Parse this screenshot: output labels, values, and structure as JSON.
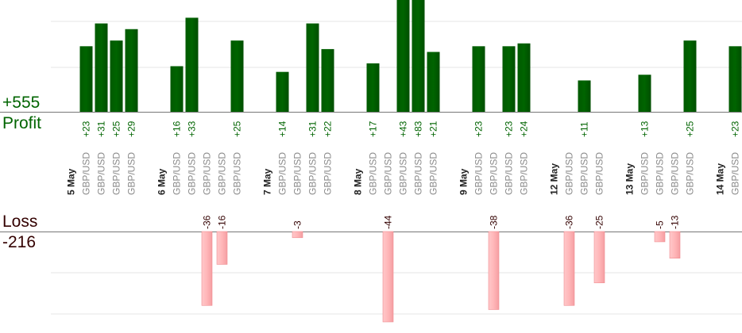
{
  "summary": {
    "profit_total": "+555",
    "profit_label": "Profit",
    "loss_label": "Loss",
    "loss_total": "-216"
  },
  "colors": {
    "profit_bar": "#006400",
    "profit_text": "#006400",
    "loss_bar": "#ffb6b8",
    "loss_text": "#330000",
    "date_text": "#222222",
    "pair_text": "#8a8a8a",
    "gridline": "#e6e6e6",
    "baseline": "#777777"
  },
  "chart_data": {
    "type": "bar",
    "title": "",
    "xlabel": "",
    "ylabel": "",
    "profit_ylim": [
      0,
      37
    ],
    "loss_ylim": [
      -44,
      0
    ],
    "grid": true,
    "legend": "none",
    "categories": [
      {
        "label": "5 May",
        "kind": "date"
      },
      {
        "label": "GBP/USD",
        "kind": "trade",
        "profit": 23,
        "loss": null
      },
      {
        "label": "GBP/USD",
        "kind": "trade",
        "profit": 31,
        "loss": null
      },
      {
        "label": "GBP/USD",
        "kind": "trade",
        "profit": 25,
        "loss": null
      },
      {
        "label": "GBP/USD",
        "kind": "trade",
        "profit": 29,
        "loss": null
      },
      {
        "label": "",
        "kind": "gap"
      },
      {
        "label": "6 May",
        "kind": "date"
      },
      {
        "label": "GBP/USD",
        "kind": "trade",
        "profit": 16,
        "loss": null
      },
      {
        "label": "GBP/USD",
        "kind": "trade",
        "profit": 33,
        "loss": null
      },
      {
        "label": "GBP/USD",
        "kind": "trade",
        "profit": null,
        "loss": -36
      },
      {
        "label": "GBP/USD",
        "kind": "trade",
        "profit": null,
        "loss": -16
      },
      {
        "label": "GBP/USD",
        "kind": "trade",
        "profit": 25,
        "loss": null
      },
      {
        "label": "",
        "kind": "gap"
      },
      {
        "label": "7 May",
        "kind": "date"
      },
      {
        "label": "GBP/USD",
        "kind": "trade",
        "profit": 14,
        "loss": null
      },
      {
        "label": "GBP/USD",
        "kind": "trade",
        "profit": null,
        "loss": -3
      },
      {
        "label": "GBP/USD",
        "kind": "trade",
        "profit": 31,
        "loss": null
      },
      {
        "label": "GBP/USD",
        "kind": "trade",
        "profit": 22,
        "loss": null
      },
      {
        "label": "",
        "kind": "gap"
      },
      {
        "label": "8 May",
        "kind": "date"
      },
      {
        "label": "GBP/USD",
        "kind": "trade",
        "profit": 17,
        "loss": null
      },
      {
        "label": "GBP/USD",
        "kind": "trade",
        "profit": null,
        "loss": -44
      },
      {
        "label": "GBP/USD",
        "kind": "trade",
        "profit": 43,
        "loss": null
      },
      {
        "label": "GBP/USD",
        "kind": "trade",
        "profit": 83,
        "loss": null
      },
      {
        "label": "GBP/USD",
        "kind": "trade",
        "profit": 21,
        "loss": null
      },
      {
        "label": "",
        "kind": "gap"
      },
      {
        "label": "9 May",
        "kind": "date"
      },
      {
        "label": "GBP/USD",
        "kind": "trade",
        "profit": 23,
        "loss": null
      },
      {
        "label": "GBP/USD",
        "kind": "trade",
        "profit": null,
        "loss": -38
      },
      {
        "label": "GBP/USD",
        "kind": "trade",
        "profit": 23,
        "loss": null
      },
      {
        "label": "GBP/USD",
        "kind": "trade",
        "profit": 24,
        "loss": null
      },
      {
        "label": "",
        "kind": "gap"
      },
      {
        "label": "12 May",
        "kind": "date"
      },
      {
        "label": "GBP/USD",
        "kind": "trade",
        "profit": null,
        "loss": -36
      },
      {
        "label": "GBP/USD",
        "kind": "trade",
        "profit": 11,
        "loss": null
      },
      {
        "label": "GBP/USD",
        "kind": "trade",
        "profit": null,
        "loss": -25
      },
      {
        "label": "",
        "kind": "gap"
      },
      {
        "label": "13 May",
        "kind": "date"
      },
      {
        "label": "GBP/USD",
        "kind": "trade",
        "profit": 13,
        "loss": null
      },
      {
        "label": "GBP/USD",
        "kind": "trade",
        "profit": null,
        "loss": -5
      },
      {
        "label": "GBP/USD",
        "kind": "trade",
        "profit": null,
        "loss": -13
      },
      {
        "label": "GBP/USD",
        "kind": "trade",
        "profit": 25,
        "loss": null
      },
      {
        "label": "",
        "kind": "gap"
      },
      {
        "label": "14 May",
        "kind": "date"
      },
      {
        "label": "GBP/USD",
        "kind": "trade",
        "profit": 23,
        "loss": null
      }
    ]
  }
}
